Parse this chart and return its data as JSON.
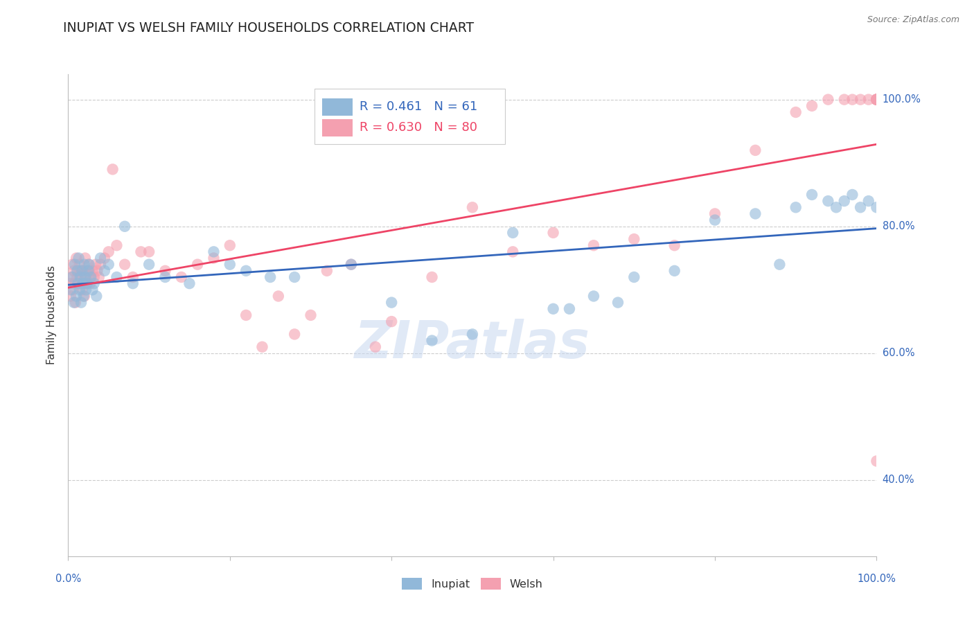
{
  "title": "INUPIAT VS WELSH FAMILY HOUSEHOLDS CORRELATION CHART",
  "source": "Source: ZipAtlas.com",
  "ylabel": "Family Households",
  "watermark": "ZIPatlas",
  "inupiat_R": 0.461,
  "inupiat_N": 61,
  "welsh_R": 0.63,
  "welsh_N": 80,
  "blue_color": "#91B8D9",
  "pink_color": "#F4A0B0",
  "blue_line_color": "#3366BB",
  "pink_line_color": "#EE4466",
  "title_color": "#222222",
  "axis_label_color": "#3366BB",
  "legend_R_color_blue": "#3366BB",
  "legend_R_color_pink": "#EE4466",
  "grid_color": "#CCCCCC",
  "background_color": "#FFFFFF",
  "figsize": [
    14.06,
    8.92
  ],
  "dpi": 100,
  "xlim": [
    0,
    100
  ],
  "ylim": [
    28,
    104
  ],
  "ytick_vals": [
    40,
    60,
    80,
    100
  ],
  "ytick_labels": [
    "40.0%",
    "60.0%",
    "80.0%",
    "100.0%"
  ],
  "inupiat_x": [
    0.3,
    0.5,
    0.7,
    0.8,
    1.0,
    1.1,
    1.2,
    1.3,
    1.4,
    1.5,
    1.6,
    1.7,
    1.8,
    1.9,
    2.0,
    2.1,
    2.2,
    2.3,
    2.5,
    2.6,
    2.8,
    3.0,
    3.2,
    3.5,
    4.0,
    4.5,
    5.0,
    6.0,
    7.0,
    8.0,
    10.0,
    12.0,
    15.0,
    18.0,
    20.0,
    22.0,
    25.0,
    28.0,
    35.0,
    40.0,
    45.0,
    50.0,
    55.0,
    60.0,
    62.0,
    65.0,
    68.0,
    70.0,
    75.0,
    80.0,
    85.0,
    88.0,
    90.0,
    92.0,
    94.0,
    95.0,
    96.0,
    97.0,
    98.0,
    99.0,
    100.0
  ],
  "inupiat_y": [
    70,
    72,
    68,
    74,
    69,
    73,
    71,
    75,
    70,
    72,
    68,
    73,
    71,
    69,
    74,
    72,
    70,
    71,
    73,
    74,
    72,
    70,
    71,
    69,
    75,
    73,
    74,
    72,
    80,
    71,
    74,
    72,
    71,
    76,
    74,
    73,
    72,
    72,
    74,
    68,
    62,
    63,
    79,
    67,
    67,
    69,
    68,
    72,
    73,
    81,
    82,
    74,
    83,
    85,
    84,
    83,
    84,
    85,
    83,
    84,
    83
  ],
  "welsh_x": [
    0.2,
    0.3,
    0.4,
    0.5,
    0.6,
    0.7,
    0.8,
    0.9,
    1.0,
    1.1,
    1.2,
    1.3,
    1.4,
    1.5,
    1.6,
    1.7,
    1.8,
    1.9,
    2.0,
    2.1,
    2.2,
    2.3,
    2.4,
    2.5,
    2.6,
    2.7,
    2.8,
    3.0,
    3.2,
    3.4,
    3.6,
    3.8,
    4.0,
    4.5,
    5.0,
    5.5,
    6.0,
    7.0,
    8.0,
    9.0,
    10.0,
    12.0,
    14.0,
    16.0,
    18.0,
    20.0,
    22.0,
    24.0,
    26.0,
    28.0,
    30.0,
    32.0,
    35.0,
    38.0,
    40.0,
    45.0,
    50.0,
    55.0,
    60.0,
    65.0,
    70.0,
    75.0,
    80.0,
    85.0,
    90.0,
    92.0,
    94.0,
    96.0,
    97.0,
    98.0,
    99.0,
    100.0,
    100.0,
    100.0,
    100.0,
    100.0,
    100.0,
    100.0,
    100.0,
    100.0
  ],
  "welsh_y": [
    71,
    69,
    72,
    74,
    70,
    73,
    71,
    68,
    75,
    72,
    73,
    71,
    74,
    73,
    72,
    70,
    73,
    71,
    69,
    75,
    72,
    73,
    71,
    74,
    73,
    71,
    72,
    73,
    72,
    74,
    73,
    72,
    74,
    75,
    76,
    89,
    77,
    74,
    72,
    76,
    76,
    73,
    72,
    74,
    75,
    77,
    66,
    61,
    69,
    63,
    66,
    73,
    74,
    61,
    65,
    72,
    83,
    76,
    79,
    77,
    78,
    77,
    82,
    92,
    98,
    99,
    100,
    100,
    100,
    100,
    100,
    100,
    100,
    100,
    100,
    100,
    100,
    100,
    100,
    43
  ]
}
